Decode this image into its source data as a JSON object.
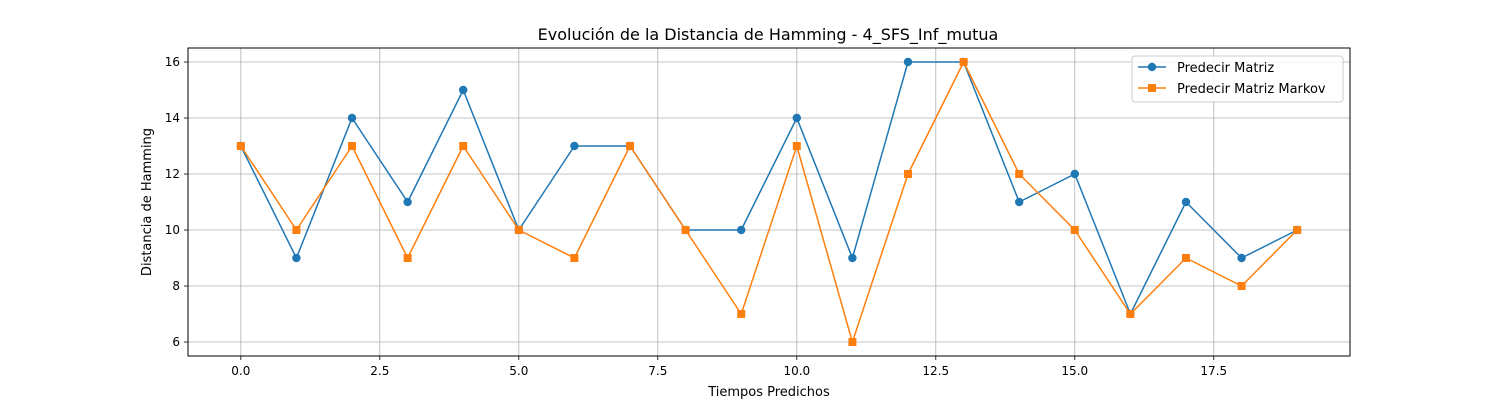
{
  "chart_data": {
    "type": "line",
    "title": "Evolución de la Distancia de Hamming - 4_SFS_Inf_mutua",
    "xlabel": "Tiempos Predichos",
    "ylabel": "Distancia de Hamming",
    "x": [
      0,
      1,
      2,
      3,
      4,
      5,
      6,
      7,
      8,
      9,
      10,
      11,
      12,
      13,
      14,
      15,
      16,
      17,
      18,
      19
    ],
    "xlim": [
      -0.95,
      19.95
    ],
    "ylim": [
      5.5,
      16.5
    ],
    "xticks": [
      0.0,
      2.5,
      5.0,
      7.5,
      10.0,
      12.5,
      15.0,
      17.5
    ],
    "xtick_labels": [
      "0.0",
      "2.5",
      "5.0",
      "7.5",
      "10.0",
      "12.5",
      "15.0",
      "17.5"
    ],
    "yticks": [
      6,
      8,
      10,
      12,
      14,
      16
    ],
    "ytick_labels": [
      "6",
      "8",
      "10",
      "12",
      "14",
      "16"
    ],
    "grid": true,
    "legend_position": "top-right",
    "series": [
      {
        "name": "Predecir Matriz",
        "color": "#1f77b4",
        "marker": "circle",
        "values": [
          13,
          9,
          14,
          11,
          15,
          10,
          13,
          13,
          10,
          10,
          14,
          9,
          16,
          16,
          11,
          12,
          7,
          11,
          9,
          10
        ]
      },
      {
        "name": "Predecir Matriz Markov",
        "color": "#ff7f0e",
        "marker": "square",
        "values": [
          13,
          10,
          13,
          9,
          13,
          10,
          9,
          13,
          10,
          7,
          13,
          6,
          12,
          16,
          12,
          10,
          7,
          9,
          8,
          10
        ]
      }
    ]
  }
}
